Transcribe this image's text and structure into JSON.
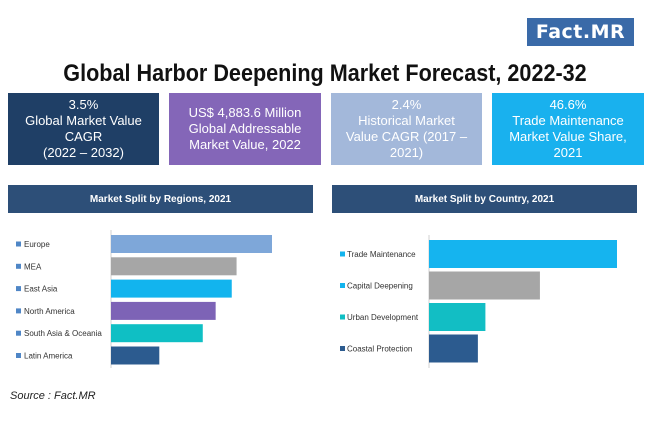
{
  "logo": "Fact.MR",
  "title": "Global Harbor Deepening Market Forecast, 2022-32",
  "stats": [
    {
      "lines": [
        "3.5%",
        "Global Market Value",
        "CAGR",
        "(2022 – 2032)"
      ],
      "color": "#1f3f66"
    },
    {
      "lines": [
        "US$ 4,883.6 Million",
        "Global Addressable",
        "Market Value, 2022"
      ],
      "color": "#8466b8"
    },
    {
      "lines": [
        "2.4%",
        "Historical Market",
        "Value CAGR (2017 –",
        "2021)"
      ],
      "color": "#a3b8da"
    },
    {
      "lines": [
        "46.6%",
        "Trade Maintenance",
        "Market Value Share,",
        "2021"
      ],
      "color": "#19b1ee"
    }
  ],
  "source": "Source : Fact.MR",
  "chart_data": [
    {
      "type": "bar",
      "orientation": "horizontal",
      "title": "Market Split by Regions, 2021",
      "categories": [
        "Europe",
        "MEA",
        "East Asia",
        "North America",
        "South Asia & Oceania",
        "Latin America"
      ],
      "values": [
        100,
        78,
        75,
        65,
        57,
        30
      ],
      "colors": [
        "#7ea7d9",
        "#a6a6a6",
        "#12b4ee",
        "#7d63b6",
        "#0fbfc4",
        "#2c5b8f"
      ],
      "marker_color": "#4f86c6"
    },
    {
      "type": "bar",
      "orientation": "horizontal",
      "title": "Market Split by Country, 2021",
      "categories": [
        "Trade Maintenance",
        "Capital Deepening",
        "Urban Development",
        "Coastal Protection"
      ],
      "values": [
        100,
        59,
        30,
        26
      ],
      "colors": [
        "#15b4ef",
        "#a6a6a6",
        "#12bec4",
        "#2c5b8f"
      ],
      "marker_colors": [
        "#12b4ee",
        "#12b4ee",
        "#0fbfc4",
        "#2c5b8f"
      ]
    }
  ]
}
